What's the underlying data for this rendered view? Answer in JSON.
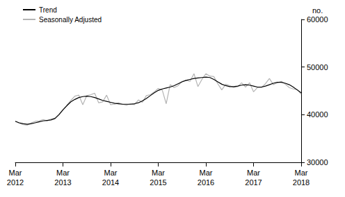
{
  "chart_data": {
    "type": "line",
    "y_label": "no.",
    "categories": [
      "Mar 2012",
      null,
      null,
      null,
      null,
      null,
      null,
      null,
      null,
      null,
      null,
      null,
      "Mar 2013",
      null,
      null,
      null,
      null,
      null,
      null,
      null,
      null,
      null,
      null,
      null,
      "Mar 2014",
      null,
      null,
      null,
      null,
      null,
      null,
      null,
      null,
      null,
      null,
      null,
      "Mar 2015",
      null,
      null,
      null,
      null,
      null,
      null,
      null,
      null,
      null,
      null,
      null,
      "Mar 2016",
      null,
      null,
      null,
      null,
      null,
      null,
      null,
      null,
      null,
      null,
      null,
      "Mar 2017",
      null,
      null,
      null,
      null,
      null,
      null,
      null,
      null,
      null,
      null,
      null,
      "Mar 2018"
    ],
    "series": [
      {
        "name": "Trend",
        "color": "#000000",
        "values": [
          38600,
          38300,
          38100,
          38000,
          38100,
          38300,
          38500,
          38700,
          38800,
          38900,
          39200,
          40000,
          41000,
          41900,
          42700,
          43200,
          43600,
          43800,
          43900,
          43800,
          43600,
          43300,
          43000,
          42800,
          42600,
          42400,
          42300,
          42200,
          42200,
          42200,
          42300,
          42500,
          42900,
          43400,
          44000,
          44600,
          45100,
          45400,
          45600,
          45800,
          46100,
          46500,
          46900,
          47200,
          47400,
          47600,
          47700,
          47800,
          47900,
          47800,
          47400,
          46900,
          46400,
          46100,
          45900,
          45900,
          46000,
          46200,
          46300,
          46200,
          46000,
          45800,
          45800,
          46000,
          46300,
          46600,
          46800,
          46800,
          46600,
          46300,
          45800,
          45200,
          44600
        ]
      },
      {
        "name": "Seasonally Adjusted",
        "color": "#b4b4b4",
        "values": [
          38700,
          38200,
          37900,
          37800,
          38300,
          38600,
          38700,
          39000,
          38700,
          39100,
          39300,
          40100,
          41000,
          42000,
          43000,
          43900,
          44100,
          42100,
          44000,
          44200,
          44500,
          42500,
          42700,
          44100,
          42100,
          42200,
          42500,
          42200,
          42000,
          42300,
          42100,
          43100,
          42600,
          44000,
          44200,
          44800,
          45500,
          45200,
          42300,
          46300,
          45700,
          46100,
          47000,
          47200,
          47000,
          48600,
          45900,
          47400,
          48600,
          48100,
          48000,
          46500,
          45200,
          46400,
          46100,
          45700,
          45900,
          46700,
          45800,
          46700,
          44800,
          45700,
          45700,
          46500,
          47600,
          46300,
          46700,
          47000,
          46400,
          45700,
          45400,
          45300,
          44300
        ]
      }
    ],
    "ylim": [
      30000,
      60000
    ],
    "yticks": [
      30000,
      40000,
      50000,
      60000
    ],
    "grid": false,
    "legend": "top-left"
  }
}
